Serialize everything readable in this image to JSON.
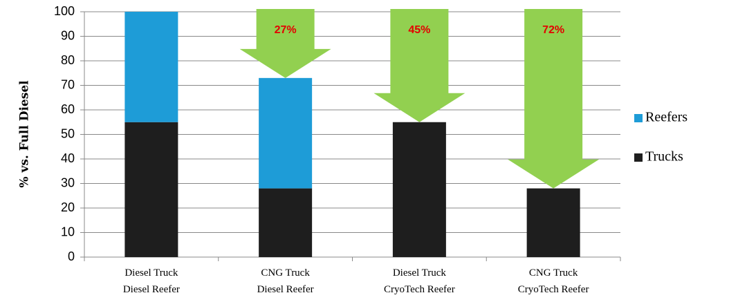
{
  "chart_data": {
    "type": "stacked_bar",
    "ylabel": "% vs. Full Diesel",
    "categories": [
      "Diesel Truck\nDiesel Reefer",
      "CNG Truck\nDiesel Reefer",
      "Diesel Truck\nCryoTech Reefer",
      "CNG Truck\nCryoTech Reefer"
    ],
    "series": [
      {
        "name": "Trucks",
        "color": "#1e1e1e",
        "values": [
          55,
          28,
          55,
          28
        ]
      },
      {
        "name": "Reefers",
        "color": "#1e9cd7",
        "values": [
          45,
          45,
          0,
          0
        ]
      }
    ],
    "annotations": [
      {
        "text": "27%",
        "category": 1
      },
      {
        "text": "45%",
        "category": 2
      },
      {
        "text": "72%",
        "category": 3
      }
    ],
    "annotation_color": "#92d050",
    "ylim": [
      0,
      100
    ],
    "yticks": [
      0,
      10,
      20,
      30,
      40,
      50,
      60,
      70,
      80,
      90,
      100
    ],
    "grid": true,
    "legend": "right"
  }
}
